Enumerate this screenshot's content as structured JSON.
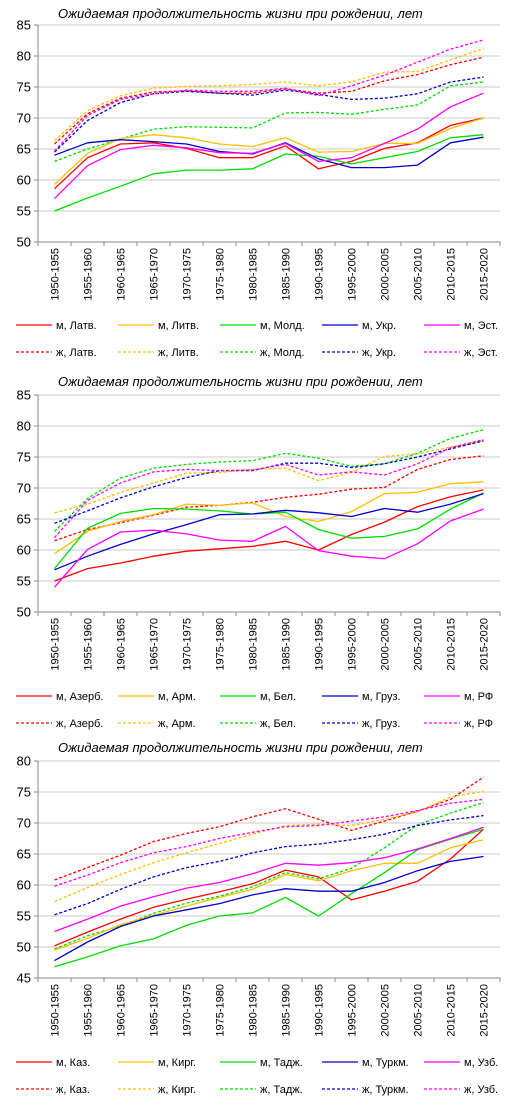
{
  "chart_data": [
    {
      "type": "line",
      "title": "Ожидаемая продолжительность жизни при рождении, лет",
      "xlabel": "",
      "ylabel": "",
      "ylim": [
        50,
        85
      ],
      "yticks": [
        50,
        55,
        60,
        65,
        70,
        75,
        80,
        85
      ],
      "grid": true,
      "legend_position": "bottom",
      "categories": [
        "1950-1955",
        "1955-1960",
        "1960-1965",
        "1965-1970",
        "1970-1975",
        "1975-1980",
        "1980-1985",
        "1985-1990",
        "1990-1995",
        "1995-2000",
        "2000-2005",
        "2005-2010",
        "2010-2015",
        "2015-2020"
      ],
      "series": [
        {
          "name": "м, Латв.",
          "color": "#ff0000",
          "dashed": false,
          "values": [
            58.6,
            63.6,
            65.8,
            66.0,
            65.1,
            63.6,
            63.6,
            65.5,
            61.8,
            63.0,
            65.1,
            66.0,
            68.8,
            70.0
          ]
        },
        {
          "name": "м, Литв.",
          "color": "#ffc000",
          "dashed": false,
          "values": [
            59.3,
            64.3,
            66.7,
            67.3,
            66.8,
            65.8,
            65.4,
            66.8,
            64.5,
            64.6,
            65.9,
            65.9,
            68.3,
            70.0
          ]
        },
        {
          "name": "м, Молд.",
          "color": "#00dd00",
          "dashed": false,
          "values": [
            55.0,
            57.1,
            59.0,
            61.0,
            61.6,
            61.6,
            61.8,
            64.2,
            63.8,
            62.6,
            63.6,
            64.6,
            66.8,
            67.3
          ]
        },
        {
          "name": "м, Укр.",
          "color": "#0000cc",
          "dashed": false,
          "values": [
            64.0,
            66.0,
            66.5,
            66.2,
            65.8,
            64.6,
            64.2,
            66.0,
            63.4,
            62.0,
            62.0,
            62.4,
            66.0,
            66.9
          ]
        },
        {
          "name": "м, Эст.",
          "color": "#ff00ff",
          "dashed": false,
          "values": [
            57.0,
            62.3,
            64.9,
            65.6,
            65.2,
            64.4,
            64.3,
            65.9,
            63.0,
            63.6,
            65.9,
            68.2,
            71.8,
            74.0
          ]
        },
        {
          "name": "ж, Латв.",
          "color": "#ff0000",
          "dashed": true,
          "values": [
            65.8,
            70.7,
            73.2,
            74.2,
            74.4,
            74.0,
            74.0,
            74.7,
            74.0,
            74.3,
            76.0,
            77.0,
            78.6,
            79.8
          ]
        },
        {
          "name": "ж, Литв.",
          "color": "#ffc000",
          "dashed": true,
          "values": [
            66.3,
            71.2,
            73.6,
            74.8,
            75.1,
            75.2,
            75.4,
            75.8,
            75.2,
            75.8,
            77.4,
            77.5,
            79.4,
            81.2
          ]
        },
        {
          "name": "ж, Молд.",
          "color": "#00dd00",
          "dashed": true,
          "values": [
            63.0,
            65.0,
            66.6,
            68.2,
            68.6,
            68.5,
            68.4,
            70.8,
            70.9,
            70.6,
            71.4,
            72.1,
            75.2,
            75.8
          ]
        },
        {
          "name": "ж, Укр.",
          "color": "#0000cc",
          "dashed": true,
          "values": [
            64.5,
            69.6,
            72.5,
            73.9,
            74.3,
            74.0,
            73.7,
            74.5,
            73.8,
            73.0,
            73.2,
            73.9,
            75.8,
            76.6
          ]
        },
        {
          "name": "ж, Эст.",
          "color": "#ff00ff",
          "dashed": true,
          "values": [
            64.7,
            70.4,
            73.0,
            73.9,
            74.5,
            74.3,
            74.3,
            74.8,
            73.6,
            75.2,
            76.9,
            79.0,
            81.1,
            82.6
          ]
        }
      ]
    },
    {
      "type": "line",
      "title": "Ожидаемая продолжительность жизни при рождении, лет",
      "xlabel": "",
      "ylabel": "",
      "ylim": [
        50,
        85
      ],
      "yticks": [
        50,
        55,
        60,
        65,
        70,
        75,
        80,
        85
      ],
      "grid": true,
      "legend_position": "bottom",
      "categories": [
        "1950-1955",
        "1955-1960",
        "1960-1965",
        "1965-1970",
        "1970-1975",
        "1975-1980",
        "1980-1985",
        "1985-1990",
        "1990-1995",
        "1995-2000",
        "2000-2005",
        "2005-2010",
        "2010-2015",
        "2015-2020"
      ],
      "series": [
        {
          "name": "м, Азерб.",
          "color": "#ff0000",
          "dashed": false,
          "values": [
            55.0,
            57.0,
            57.9,
            59.0,
            59.8,
            60.2,
            60.6,
            61.4,
            60.0,
            62.5,
            64.5,
            67.0,
            68.6,
            69.7
          ]
        },
        {
          "name": "м, Арм.",
          "color": "#ffc000",
          "dashed": false,
          "values": [
            59.4,
            63.0,
            64.6,
            65.7,
            67.4,
            67.2,
            67.6,
            65.4,
            64.6,
            66.2,
            69.1,
            69.3,
            70.7,
            71.0
          ]
        },
        {
          "name": "м, Бел.",
          "color": "#00dd00",
          "dashed": false,
          "values": [
            57.0,
            63.5,
            65.9,
            66.7,
            66.6,
            66.3,
            65.8,
            66.1,
            63.3,
            61.9,
            62.2,
            63.4,
            66.6,
            69.2
          ]
        },
        {
          "name": "м, Груз.",
          "color": "#0000cc",
          "dashed": false,
          "values": [
            56.8,
            59.0,
            60.9,
            62.6,
            64.1,
            65.7,
            65.8,
            66.4,
            66.0,
            65.4,
            66.7,
            66.1,
            67.4,
            69.1
          ]
        },
        {
          "name": "м, РФ",
          "color": "#ff00ff",
          "dashed": false,
          "values": [
            54.0,
            60.1,
            62.9,
            63.2,
            62.6,
            61.6,
            61.4,
            63.8,
            59.9,
            59.0,
            58.6,
            61.0,
            64.7,
            66.6
          ]
        },
        {
          "name": "ж, Азерб.",
          "color": "#ff0000",
          "dashed": true,
          "values": [
            61.5,
            63.3,
            64.4,
            65.6,
            66.9,
            67.2,
            67.7,
            68.5,
            69.0,
            69.8,
            70.1,
            73.0,
            74.6,
            75.2
          ]
        },
        {
          "name": "ж, Арм.",
          "color": "#ffc000",
          "dashed": true,
          "values": [
            66.0,
            67.4,
            69.3,
            70.8,
            72.4,
            72.5,
            73.0,
            73.2,
            71.2,
            72.5,
            75.1,
            75.5,
            76.6,
            77.6
          ]
        },
        {
          "name": "ж, Бел.",
          "color": "#00dd00",
          "dashed": true,
          "values": [
            63.0,
            68.3,
            71.6,
            73.2,
            73.8,
            74.2,
            74.4,
            75.6,
            74.8,
            73.5,
            73.9,
            75.6,
            78.0,
            79.4
          ]
        },
        {
          "name": "ж, Груз.",
          "color": "#0000cc",
          "dashed": true,
          "values": [
            64.3,
            66.3,
            68.4,
            70.2,
            71.7,
            72.8,
            72.8,
            74.0,
            74.0,
            73.3,
            73.9,
            75.0,
            76.3,
            77.6
          ]
        },
        {
          "name": "ж, РФ",
          "color": "#ff00ff",
          "dashed": true,
          "values": [
            62.0,
            68.0,
            70.8,
            72.6,
            73.0,
            72.8,
            72.9,
            73.8,
            72.1,
            72.6,
            72.1,
            73.9,
            76.5,
            77.8
          ]
        }
      ]
    },
    {
      "type": "line",
      "title": "Ожидаемая продолжительность жизни при рождении, лет",
      "xlabel": "",
      "ylabel": "",
      "ylim": [
        45,
        80
      ],
      "yticks": [
        45,
        50,
        55,
        60,
        65,
        70,
        75,
        80
      ],
      "grid": true,
      "legend_position": "bottom",
      "categories": [
        "1950-1955",
        "1955-1960",
        "1960-1965",
        "1965-1970",
        "1970-1975",
        "1975-1980",
        "1980-1985",
        "1985-1990",
        "1990-1995",
        "1995-2000",
        "2000-2005",
        "2005-2010",
        "2010-2015",
        "2015-2020"
      ],
      "series": [
        {
          "name": "м, Каз.",
          "color": "#ff0000",
          "dashed": false,
          "values": [
            50.2,
            52.4,
            54.5,
            56.4,
            57.7,
            58.9,
            60.2,
            62.4,
            61.3,
            57.6,
            59.0,
            60.6,
            64.2,
            69.0
          ]
        },
        {
          "name": "м, Кирг.",
          "color": "#ffc000",
          "dashed": false,
          "values": [
            49.5,
            51.4,
            53.6,
            55.1,
            56.6,
            58.0,
            59.3,
            61.7,
            60.7,
            62.3,
            63.5,
            63.5,
            66.0,
            67.3
          ]
        },
        {
          "name": "м, Тадж.",
          "color": "#00dd00",
          "dashed": false,
          "values": [
            46.8,
            48.4,
            50.2,
            51.3,
            53.5,
            55.0,
            55.5,
            58.0,
            55.0,
            58.6,
            62.0,
            65.7,
            67.4,
            69.0
          ]
        },
        {
          "name": "м, Туркм.",
          "color": "#0000cc",
          "dashed": false,
          "values": [
            47.8,
            50.8,
            53.3,
            55.0,
            56.0,
            57.0,
            58.4,
            59.4,
            59.0,
            59.0,
            60.4,
            62.3,
            63.8,
            64.6
          ]
        },
        {
          "name": "м, Узб.",
          "color": "#ff00ff",
          "dashed": false,
          "values": [
            52.5,
            54.5,
            56.6,
            58.1,
            59.5,
            60.4,
            61.8,
            63.5,
            63.2,
            63.6,
            64.4,
            65.8,
            67.5,
            69.3
          ]
        },
        {
          "name": "ж, Каз.",
          "color": "#ff0000",
          "dashed": true,
          "values": [
            60.8,
            62.8,
            64.8,
            67.0,
            68.3,
            69.4,
            71.0,
            72.3,
            70.6,
            68.8,
            70.3,
            71.9,
            73.8,
            77.4
          ]
        },
        {
          "name": "ж, Кирг.",
          "color": "#ffc000",
          "dashed": true,
          "values": [
            57.3,
            59.6,
            61.7,
            63.6,
            65.2,
            66.7,
            68.2,
            69.6,
            69.8,
            69.6,
            70.6,
            71.8,
            74.2,
            75.1
          ]
        },
        {
          "name": "ж, Тадж.",
          "color": "#00dd00",
          "dashed": true,
          "values": [
            49.7,
            51.8,
            53.4,
            55.4,
            57.1,
            58.2,
            59.7,
            62.0,
            61.0,
            62.7,
            66.0,
            69.7,
            71.6,
            73.3
          ]
        },
        {
          "name": "ж, Туркм.",
          "color": "#0000cc",
          "dashed": true,
          "values": [
            55.2,
            57.0,
            59.3,
            61.3,
            62.8,
            63.8,
            65.2,
            66.2,
            66.6,
            67.3,
            68.2,
            69.6,
            70.5,
            71.2
          ]
        },
        {
          "name": "ж, Узб.",
          "color": "#ff00ff",
          "dashed": true,
          "values": [
            59.8,
            61.6,
            63.6,
            65.2,
            66.2,
            67.5,
            68.5,
            69.4,
            69.6,
            70.3,
            71.0,
            72.0,
            73.2,
            73.8
          ]
        }
      ]
    }
  ]
}
